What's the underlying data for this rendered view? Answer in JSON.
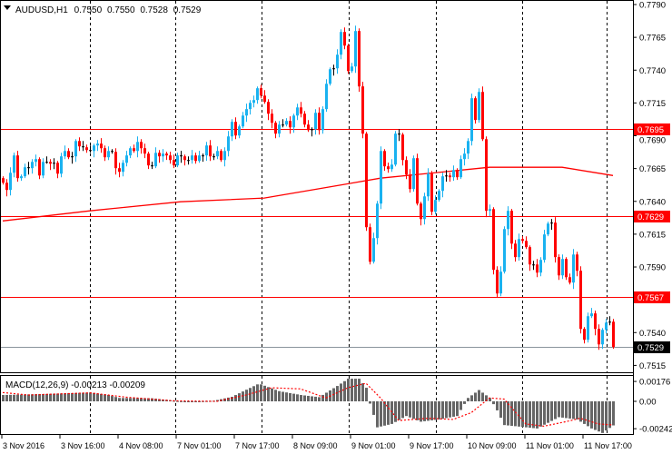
{
  "header": {
    "symbol": "AUDUSD,H1",
    "open": "0.7550",
    "high": "0.7550",
    "low": "0.7528",
    "close": "0.7529"
  },
  "colors": {
    "bull": "#1ab2f0",
    "bear": "#ff0000",
    "doji": "#000000",
    "hline": "#ff0000",
    "bid_line": "#8a949c",
    "ma": "#ff0000",
    "histogram": "#666666",
    "signal": "#ff0000"
  },
  "chart_data": {
    "type": "candlestick",
    "title": "AUDUSD,H1",
    "ylim": [
      0.7508,
      0.779
    ],
    "first_open": 0.76577,
    "closes": [
      0.76542,
      0.76487,
      0.76618,
      0.7675,
      0.76577,
      0.76591,
      0.7666,
      0.76653,
      0.76701,
      0.76722,
      0.76597,
      0.76701,
      0.76701,
      0.76687,
      0.76694,
      0.76611,
      0.76743,
      0.76784,
      0.76736,
      0.76743,
      0.7686,
      0.76819,
      0.76812,
      0.76791,
      0.76784,
      0.76826,
      0.7684,
      0.76805,
      0.76736,
      0.76784,
      0.76777,
      0.76653,
      0.76625,
      0.76694,
      0.7675,
      0.76805,
      0.76784,
      0.76853,
      0.76805,
      0.76764,
      0.76674,
      0.76667,
      0.7677,
      0.76743,
      0.76764,
      0.7675,
      0.76715,
      0.76674,
      0.7675,
      0.76743,
      0.76715,
      0.76715,
      0.7675,
      0.76708,
      0.7675,
      0.7675,
      0.76826,
      0.76743,
      0.76743,
      0.76784,
      0.76715,
      0.76784,
      0.76895,
      0.77006,
      0.76902,
      0.76971,
      0.77054,
      0.77103,
      0.77151,
      0.77172,
      0.77262,
      0.77206,
      0.77158,
      0.77068,
      0.76999,
      0.76916,
      0.76985,
      0.76985,
      0.77013,
      0.76964,
      0.77054,
      0.77116,
      0.77068,
      0.76985,
      0.76943,
      0.7695,
      0.77075,
      0.76943,
      0.77103,
      0.77296,
      0.77407,
      0.77414,
      0.77518,
      0.77691,
      0.77587,
      0.77393,
      0.77428,
      0.77698,
      0.77276,
      0.76916,
      0.76203,
      0.7594,
      0.7612,
      0.76383,
      0.76784,
      0.76667,
      0.76646,
      0.7668,
      0.76916,
      0.76909,
      0.76715,
      0.76604,
      0.76494,
      0.76729,
      0.76383,
      0.76265,
      0.76438,
      0.76611,
      0.76321,
      0.76411,
      0.7648,
      0.76591,
      0.76597,
      0.76584,
      0.76639,
      0.76584,
      0.76722,
      0.76764,
      0.7686,
      0.77186,
      0.7702,
      0.77234,
      0.76874,
      0.76328,
      0.76341,
      0.75878,
      0.75698,
      0.75864,
      0.76189,
      0.76328,
      0.76078,
      0.75975,
      0.76113,
      0.76099,
      0.76051,
      0.75919,
      0.75919,
      0.75857,
      0.75954,
      0.76148,
      0.76231,
      0.76238,
      0.75975,
      0.75836,
      0.75961,
      0.75822,
      0.75781,
      0.75995,
      0.75871,
      0.75428,
      0.75345,
      0.75525,
      0.75546,
      0.75428,
      0.7531,
      0.75421,
      0.75476,
      0.75483,
      0.7529
    ],
    "moving_average": [
      [
        0,
        0.76251
      ],
      [
        24,
        0.76328
      ],
      [
        49,
        0.76397
      ],
      [
        72,
        0.76425
      ],
      [
        94,
        0.76529
      ],
      [
        104,
        0.76577
      ],
      [
        119,
        0.76618
      ],
      [
        134,
        0.7666
      ],
      [
        154,
        0.7666
      ],
      [
        168,
        0.76597
      ]
    ],
    "horizontal_lines": [
      {
        "price": 0.7695,
        "label": "0.7695"
      },
      {
        "price": 0.7629,
        "label": "0.7629"
      },
      {
        "price": 0.7567,
        "label": "0.7567"
      }
    ],
    "bid": {
      "price": 0.7529,
      "label": "0.7529"
    },
    "y_ticks": [
      "0.7790",
      "0.7765",
      "0.7740",
      "0.7715",
      "0.7690",
      "0.7665",
      "0.7640",
      "0.7615",
      "0.7590",
      "0.7540",
      "0.7515"
    ],
    "x_ticks": [
      "3 Nov 2016",
      "3 Nov 16:00",
      "4 Nov 08:00",
      "7 Nov 01:00",
      "7 Nov 17:00",
      "8 Nov 09:00",
      "9 Nov 01:00",
      "9 Nov 17:00",
      "10 Nov 09:00",
      "11 Nov 01:00",
      "11 Nov 17:00"
    ],
    "macd": {
      "label": "MACD(12,26,9) -0.00213 -0.00209",
      "ylim": [
        -0.003,
        0.0025
      ],
      "y_ticks": [
        "0.00176",
        "0.00",
        "-0.00242"
      ],
      "histogram": [
        [
          0,
          0.00056
        ],
        [
          11,
          0.00064
        ],
        [
          24,
          0.00078
        ],
        [
          29,
          0.00056
        ],
        [
          32,
          0.0003
        ],
        [
          41,
          0.00027
        ],
        [
          47,
          5e-05
        ],
        [
          51,
          -3e-05
        ],
        [
          58,
          5e-05
        ],
        [
          63,
          0.0004
        ],
        [
          70,
          0.0015
        ],
        [
          71,
          0.0015
        ],
        [
          76,
          0.0009
        ],
        [
          82,
          0.00056
        ],
        [
          87,
          0.00037
        ],
        [
          92,
          0.00136
        ],
        [
          95,
          0.002
        ],
        [
          98,
          0.002
        ],
        [
          100,
          0.0012
        ],
        [
          101,
          -0.0002
        ],
        [
          102,
          -0.0012
        ],
        [
          103,
          -0.0023
        ],
        [
          107,
          -0.002
        ],
        [
          111,
          -0.0013
        ],
        [
          115,
          -0.0018
        ],
        [
          120,
          -0.0016
        ],
        [
          125,
          -0.0013
        ],
        [
          128,
          0.0003
        ],
        [
          131,
          0.001
        ],
        [
          134,
          0.0003
        ],
        [
          136,
          -0.0008
        ],
        [
          138,
          -0.0021
        ],
        [
          147,
          -0.0024
        ],
        [
          153,
          -0.0014
        ],
        [
          158,
          -0.0016
        ],
        [
          162,
          -0.0024
        ],
        [
          165,
          -0.0028
        ],
        [
          168,
          -0.00213
        ]
      ],
      "signal": [
        [
          0,
          0.00078
        ],
        [
          7,
          0.00056
        ],
        [
          24,
          0.00075
        ],
        [
          34,
          0.00037
        ],
        [
          47,
          5e-05
        ],
        [
          59,
          0.0
        ],
        [
          67,
          0.00056
        ],
        [
          74,
          0.0012
        ],
        [
          82,
          0.0011
        ],
        [
          89,
          0.0003
        ],
        [
          95,
          0.0012
        ],
        [
          100,
          0.0016
        ],
        [
          104,
          0.0003
        ],
        [
          109,
          -0.0017
        ],
        [
          117,
          -0.0015
        ],
        [
          124,
          -0.0016
        ],
        [
          129,
          -0.001
        ],
        [
          134,
          0.0003
        ],
        [
          138,
          0.0002
        ],
        [
          144,
          -0.002
        ],
        [
          149,
          -0.0022
        ],
        [
          155,
          -0.0018
        ],
        [
          159,
          -0.0015
        ],
        [
          164,
          -0.002
        ],
        [
          168,
          -0.00209
        ]
      ]
    }
  }
}
